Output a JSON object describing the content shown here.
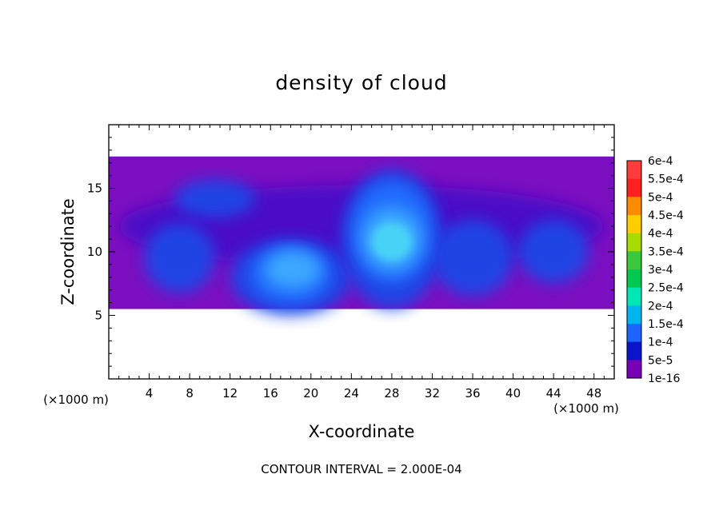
{
  "chart_data": {
    "type": "heatmap",
    "title": "density of cloud",
    "xlabel": "X-coordinate",
    "ylabel": "Z-coordinate",
    "x_multiplier_left": "(×1000 m)",
    "x_multiplier_right": "(×1000 m)",
    "xlim": [
      0,
      50
    ],
    "ylim": [
      0,
      20
    ],
    "x_ticks": [
      "4",
      "8",
      "12",
      "16",
      "20",
      "24",
      "28",
      "32",
      "36",
      "40",
      "44",
      "48"
    ],
    "y_ticks": [
      "5",
      "10",
      "15"
    ],
    "grid": false,
    "legend_position": "right",
    "contour_interval_text": "CONTOUR INTERVAL = 2.000E-04",
    "colorbar": {
      "levels": [
        {
          "label": "6e-4",
          "color": "#f08080"
        },
        {
          "label": "5.5e-4",
          "color": "#ff3c3c"
        },
        {
          "label": "5e-4",
          "color": "#ff2020"
        },
        {
          "label": "4.5e-4",
          "color": "#ff8c00"
        },
        {
          "label": "4e-4",
          "color": "#ffcc00"
        },
        {
          "label": "3.5e-4",
          "color": "#a8dc00"
        },
        {
          "label": "3e-4",
          "color": "#3cc83c"
        },
        {
          "label": "2.5e-4",
          "color": "#00c850"
        },
        {
          "label": "2e-4",
          "color": "#00e6b4"
        },
        {
          "label": "1.5e-4",
          "color": "#00b4f0"
        },
        {
          "label": "1e-4",
          "color": "#1e64ff"
        },
        {
          "label": "5e-5",
          "color": "#0a14c8"
        },
        {
          "label": "1e-16",
          "color": "#7800b4"
        }
      ]
    },
    "field_colors": {
      "background_min": "#7b0fc0",
      "low": "#4a10c8",
      "mid_blue": "#1e46e6",
      "blue": "#2070ff",
      "light_blue": "#3caaff",
      "cyan": "#4ad6f6"
    },
    "cloud_regions": [
      {
        "x": 25,
        "z": 17.5,
        "w": 50,
        "h": 12,
        "level": "background_min"
      },
      {
        "x": 25,
        "z": 12,
        "w": 48,
        "h": 6.5,
        "level": "low"
      },
      {
        "x": 10.5,
        "z": 14.2,
        "w": 8,
        "h": 3,
        "level": "mid_blue"
      },
      {
        "x": 7,
        "z": 9.5,
        "w": 7,
        "h": 5.5,
        "level": "mid_blue"
      },
      {
        "x": 18,
        "z": 8,
        "w": 12,
        "h": 6,
        "level": "mid_blue"
      },
      {
        "x": 28,
        "z": 11,
        "w": 10,
        "h": 11,
        "level": "mid_blue"
      },
      {
        "x": 36,
        "z": 9.5,
        "w": 8,
        "h": 6,
        "level": "mid_blue"
      },
      {
        "x": 44,
        "z": 10,
        "w": 7,
        "h": 5,
        "level": "mid_blue"
      },
      {
        "x": 18,
        "z": 8.2,
        "w": 8,
        "h": 4.5,
        "level": "blue"
      },
      {
        "x": 28,
        "z": 11.5,
        "w": 8,
        "h": 8,
        "level": "blue"
      },
      {
        "x": 18.2,
        "z": 8.6,
        "w": 5.5,
        "h": 3,
        "level": "light_blue"
      },
      {
        "x": 28,
        "z": 11,
        "w": 6,
        "h": 5,
        "level": "light_blue"
      },
      {
        "x": 28,
        "z": 10.8,
        "w": 4,
        "h": 3,
        "level": "cyan"
      }
    ]
  }
}
